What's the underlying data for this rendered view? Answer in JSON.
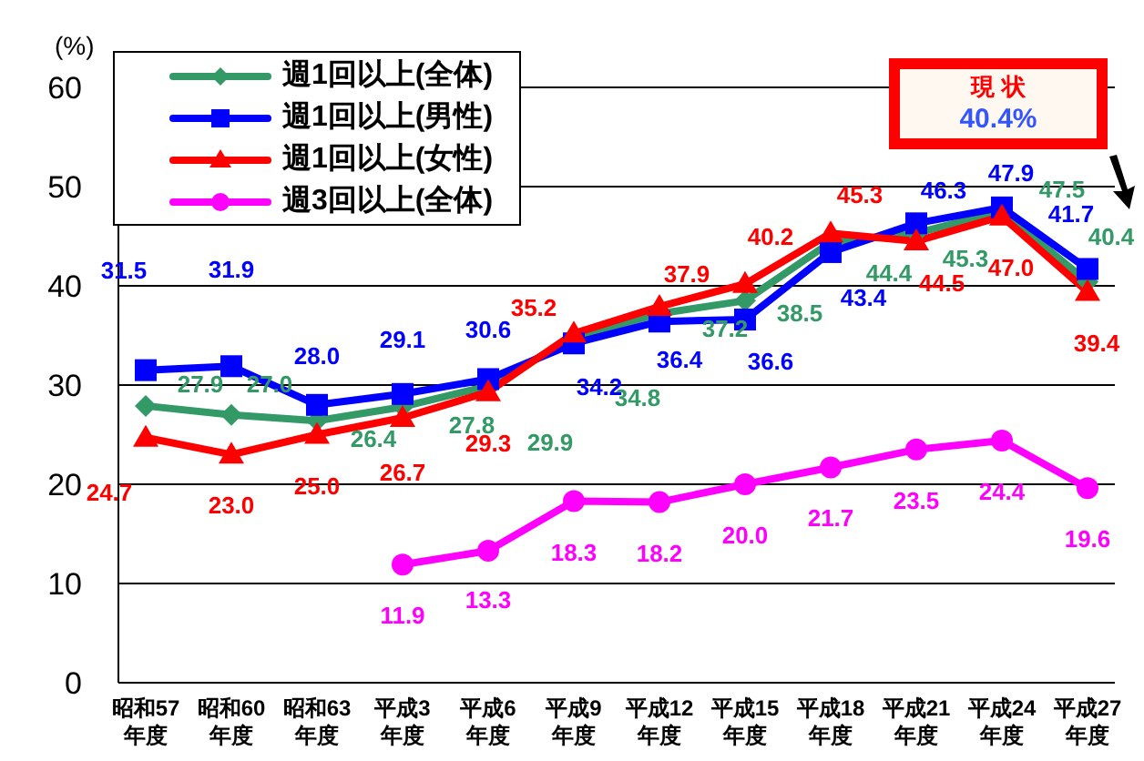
{
  "chart_data": {
    "type": "line",
    "ylabel": "(%)",
    "categories": [
      "昭和57年度",
      "昭和60年度",
      "昭和63年度",
      "平成3年度",
      "平成6年度",
      "平成9年度",
      "平成12年度",
      "平成15年度",
      "平成18年度",
      "平成21年度",
      "平成24年度",
      "平成27年度"
    ],
    "series": [
      {
        "name": "週1回以上(全体)",
        "color": "#339966",
        "marker": "diamond",
        "values": [
          27.9,
          27.0,
          26.4,
          27.8,
          29.9,
          34.8,
          37.2,
          38.5,
          44.4,
          45.3,
          47.5,
          40.4
        ],
        "value_labels": [
          "27.9",
          "27.0",
          "26.4",
          "27.8",
          "29.9",
          "34.8",
          "37.2",
          "38.5",
          "44.4",
          "45.3",
          "47.5",
          "40.4"
        ]
      },
      {
        "name": "週1回以上(男性)",
        "color": "#0000ff",
        "marker": "square",
        "values": [
          31.5,
          31.9,
          28.0,
          29.1,
          30.6,
          34.2,
          36.4,
          36.6,
          43.4,
          46.3,
          47.9,
          41.7
        ],
        "value_labels": [
          "31.5",
          "31.9",
          "28.0",
          "29.1",
          "30.6",
          "34.2",
          "36.4",
          "36.6",
          "43.4",
          "46.3",
          "47.9",
          "41.7"
        ]
      },
      {
        "name": "週1回以上(女性)",
        "color": "#ff0000",
        "marker": "triangle",
        "values": [
          24.7,
          23.0,
          25.0,
          26.7,
          29.3,
          35.2,
          37.9,
          40.2,
          45.3,
          44.5,
          47.0,
          39.4
        ],
        "value_labels": [
          "24.7",
          "23.0",
          "25.0",
          "26.7",
          "29.3",
          "35.2",
          "37.9",
          "40.2",
          "45.3",
          "44.5",
          "47.0",
          "39.4"
        ]
      },
      {
        "name": "週3回以上(全体)",
        "color": "#ff00ff",
        "marker": "circle",
        "values": [
          null,
          null,
          null,
          11.9,
          13.3,
          18.3,
          18.2,
          20.0,
          21.7,
          23.5,
          24.4,
          19.6
        ],
        "value_labels": [
          null,
          null,
          null,
          "11.9",
          "13.3",
          "18.3",
          "18.2",
          "20.0",
          "21.7",
          "23.5",
          "24.4",
          "19.6"
        ]
      }
    ],
    "ylim": [
      0,
      60
    ],
    "yticks": [
      0,
      10,
      20,
      30,
      40,
      50,
      60
    ],
    "grid": "y",
    "legend": "top left",
    "annotations": [
      "現 状",
      "40.4%"
    ]
  }
}
